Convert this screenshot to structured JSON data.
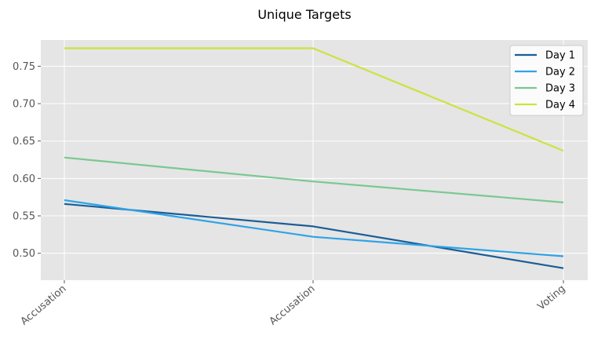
{
  "chart_data": {
    "type": "line",
    "title": "Unique Targets",
    "xlabel": "",
    "ylabel": "",
    "categories": [
      "Accusation",
      "Accusation",
      "Voting"
    ],
    "yticks": [
      0.5,
      0.55,
      0.6,
      0.65,
      0.7,
      0.75
    ],
    "ylim": [
      0.464,
      0.785
    ],
    "grid": true,
    "legend_position": "top-right",
    "series": [
      {
        "name": "Day 1",
        "color": "#1a5e96",
        "values": [
          0.566,
          0.536,
          0.48
        ]
      },
      {
        "name": "Day 2",
        "color": "#2ea3e8",
        "values": [
          0.571,
          0.522,
          0.496
        ]
      },
      {
        "name": "Day 3",
        "color": "#7ac892",
        "values": [
          0.628,
          0.596,
          0.568
        ]
      },
      {
        "name": "Day 4",
        "color": "#cde23e",
        "values": [
          0.774,
          0.774,
          0.637
        ]
      }
    ]
  }
}
